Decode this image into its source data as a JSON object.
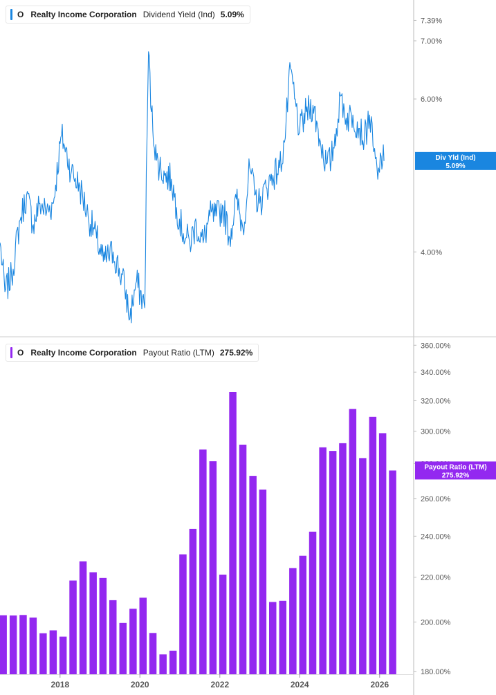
{
  "colors": {
    "dividend_line": "#1a86e0",
    "dividend_tag": "#1a86e0",
    "payout_bar": "#9328f0",
    "payout_tag": "#9328f0",
    "axis_text": "#555555",
    "grid_border": "#bbbbbb"
  },
  "legend_top": {
    "ticker": "O",
    "company": "Realty Income Corporation",
    "metric": "Dividend Yield (Ind)",
    "value": "5.09%"
  },
  "legend_bottom": {
    "ticker": "O",
    "company": "Realty Income Corporation",
    "metric": "Payout Ratio (LTM)",
    "value": "275.92%"
  },
  "chart_data": [
    {
      "type": "line",
      "series": [
        {
          "name": "Dividend Yield (Ind)"
        }
      ],
      "y_scale": "log",
      "ylim": [
        3.2,
        7.8
      ],
      "y_ticks": [
        {
          "value": 7.39,
          "label": "7.39%"
        },
        {
          "value": 7.0,
          "label": "7.00%"
        },
        {
          "value": 6.0,
          "label": "6.00%"
        },
        {
          "value": 4.0,
          "label": "4.00%"
        }
      ],
      "last_value_tag": {
        "label": "Div Yld (Ind)",
        "value": 5.09,
        "value_label": "5.09%"
      },
      "points": [
        [
          "2016-07-01",
          4.1
        ],
        [
          "2016-08-15",
          3.6
        ],
        [
          "2016-10-15",
          3.75
        ],
        [
          "2017-01-01",
          4.35
        ],
        [
          "2017-03-01",
          4.65
        ],
        [
          "2017-05-01",
          4.3
        ],
        [
          "2017-07-01",
          4.55
        ],
        [
          "2017-09-01",
          4.45
        ],
        [
          "2017-11-01",
          4.55
        ],
        [
          "2018-01-15",
          5.45
        ],
        [
          "2018-02-10",
          5.3
        ],
        [
          "2018-04-15",
          4.95
        ],
        [
          "2018-07-01",
          4.75
        ],
        [
          "2018-09-15",
          4.4
        ],
        [
          "2018-12-01",
          4.15
        ],
        [
          "2019-02-01",
          3.9
        ],
        [
          "2019-05-01",
          4.0
        ],
        [
          "2019-08-15",
          3.65
        ],
        [
          "2019-10-01",
          3.35
        ],
        [
          "2019-12-01",
          3.7
        ],
        [
          "2020-02-15",
          3.45
        ],
        [
          "2020-03-20",
          6.8
        ],
        [
          "2020-04-15",
          5.8
        ],
        [
          "2020-06-01",
          5.1
        ],
        [
          "2020-08-15",
          4.9
        ],
        [
          "2020-10-15",
          4.85
        ],
        [
          "2020-12-01",
          4.5
        ],
        [
          "2021-02-01",
          4.2
        ],
        [
          "2021-04-01",
          4.1
        ],
        [
          "2021-06-01",
          4.3
        ],
        [
          "2021-08-01",
          4.1
        ],
        [
          "2021-10-01",
          4.4
        ],
        [
          "2021-12-01",
          4.4
        ],
        [
          "2022-02-01",
          4.5
        ],
        [
          "2022-04-01",
          4.15
        ],
        [
          "2022-06-01",
          4.6
        ],
        [
          "2022-08-01",
          4.25
        ],
        [
          "2022-10-01",
          5.0
        ],
        [
          "2022-11-15",
          4.65
        ],
        [
          "2023-01-01",
          4.55
        ],
        [
          "2023-03-01",
          4.75
        ],
        [
          "2023-05-01",
          4.9
        ],
        [
          "2023-07-01",
          5.0
        ],
        [
          "2023-08-15",
          5.35
        ],
        [
          "2023-10-10",
          6.5
        ],
        [
          "2023-11-15",
          6.0
        ],
        [
          "2024-01-01",
          5.5
        ],
        [
          "2024-03-01",
          5.8
        ],
        [
          "2024-05-01",
          5.9
        ],
        [
          "2024-07-01",
          5.4
        ],
        [
          "2024-09-01",
          5.05
        ],
        [
          "2024-10-15",
          5.1
        ],
        [
          "2024-12-01",
          5.55
        ],
        [
          "2025-01-15",
          6.05
        ],
        [
          "2025-03-01",
          5.7
        ],
        [
          "2025-05-01",
          5.75
        ],
        [
          "2025-07-01",
          5.55
        ],
        [
          "2025-08-15",
          5.4
        ],
        [
          "2025-10-01",
          5.75
        ],
        [
          "2025-11-01",
          5.3
        ],
        [
          "2025-12-15",
          4.85
        ],
        [
          "2026-01-15",
          5.15
        ],
        [
          "2026-02-10",
          5.09
        ]
      ]
    },
    {
      "type": "bar",
      "series": [
        {
          "name": "Payout Ratio (LTM)"
        }
      ],
      "y_scale": "log",
      "ylim": [
        179,
        366
      ],
      "y_ticks": [
        {
          "value": 180,
          "label": "180.00%"
        },
        {
          "value": 200,
          "label": "200.00%"
        },
        {
          "value": 220,
          "label": "220.00%"
        },
        {
          "value": 240,
          "label": "240.00%"
        },
        {
          "value": 260,
          "label": "260.00%"
        },
        {
          "value": 280,
          "label": "280.00%"
        },
        {
          "value": 300,
          "label": "300.00%"
        },
        {
          "value": 320,
          "label": "320.00%"
        },
        {
          "value": 340,
          "label": "340.00%"
        },
        {
          "value": 360,
          "label": "360.00%"
        }
      ],
      "last_value_tag": {
        "label": "Payout Ratio (LTM)",
        "value": 275.92,
        "value_label": "275.92%"
      },
      "x_ticks": [
        {
          "value": "2018-01-01",
          "label": "2018"
        },
        {
          "value": "2020-01-01",
          "label": "2020"
        },
        {
          "value": "2022-01-01",
          "label": "2022"
        },
        {
          "value": "2024-01-01",
          "label": "2024"
        },
        {
          "value": "2026-01-01",
          "label": "2026"
        }
      ],
      "bars": [
        {
          "date": "2016-09-30",
          "value": 202.9
        },
        {
          "date": "2016-12-31",
          "value": 202.8
        },
        {
          "date": "2017-03-31",
          "value": 203.0
        },
        {
          "date": "2017-06-30",
          "value": 201.9
        },
        {
          "date": "2017-09-30",
          "value": 195.3
        },
        {
          "date": "2017-12-31",
          "value": 196.5
        },
        {
          "date": "2018-03-31",
          "value": 193.9
        },
        {
          "date": "2018-06-30",
          "value": 218.4
        },
        {
          "date": "2018-09-30",
          "value": 227.5
        },
        {
          "date": "2018-12-31",
          "value": 222.3
        },
        {
          "date": "2019-03-31",
          "value": 219.6
        },
        {
          "date": "2019-06-30",
          "value": 209.5
        },
        {
          "date": "2019-09-30",
          "value": 199.6
        },
        {
          "date": "2019-12-31",
          "value": 205.7
        },
        {
          "date": "2020-03-31",
          "value": 210.6
        },
        {
          "date": "2020-06-30",
          "value": 195.4
        },
        {
          "date": "2020-09-30",
          "value": 186.7
        },
        {
          "date": "2020-12-31",
          "value": 188.2
        },
        {
          "date": "2021-03-31",
          "value": 230.9
        },
        {
          "date": "2021-06-30",
          "value": 243.7
        },
        {
          "date": "2021-09-30",
          "value": 288.5
        },
        {
          "date": "2021-12-31",
          "value": 281.4
        },
        {
          "date": "2022-03-31",
          "value": 221.2
        },
        {
          "date": "2022-06-30",
          "value": 325.9
        },
        {
          "date": "2022-09-30",
          "value": 291.5
        },
        {
          "date": "2022-12-31",
          "value": 272.8
        },
        {
          "date": "2023-03-31",
          "value": 265.0
        },
        {
          "date": "2023-06-30",
          "value": 208.7
        },
        {
          "date": "2023-09-30",
          "value": 209.2
        },
        {
          "date": "2023-12-31",
          "value": 224.3
        },
        {
          "date": "2024-03-31",
          "value": 230.2
        },
        {
          "date": "2024-06-30",
          "value": 242.3
        },
        {
          "date": "2024-09-30",
          "value": 289.8
        },
        {
          "date": "2024-12-31",
          "value": 287.6
        },
        {
          "date": "2025-03-31",
          "value": 292.4
        },
        {
          "date": "2025-06-30",
          "value": 314.5
        },
        {
          "date": "2025-09-30",
          "value": 283.3
        },
        {
          "date": "2025-12-31",
          "value": 309.2
        },
        {
          "date": "2026-03-31",
          "value": 298.7
        },
        {
          "date": "2026-06-30",
          "value": 275.92
        }
      ]
    }
  ]
}
